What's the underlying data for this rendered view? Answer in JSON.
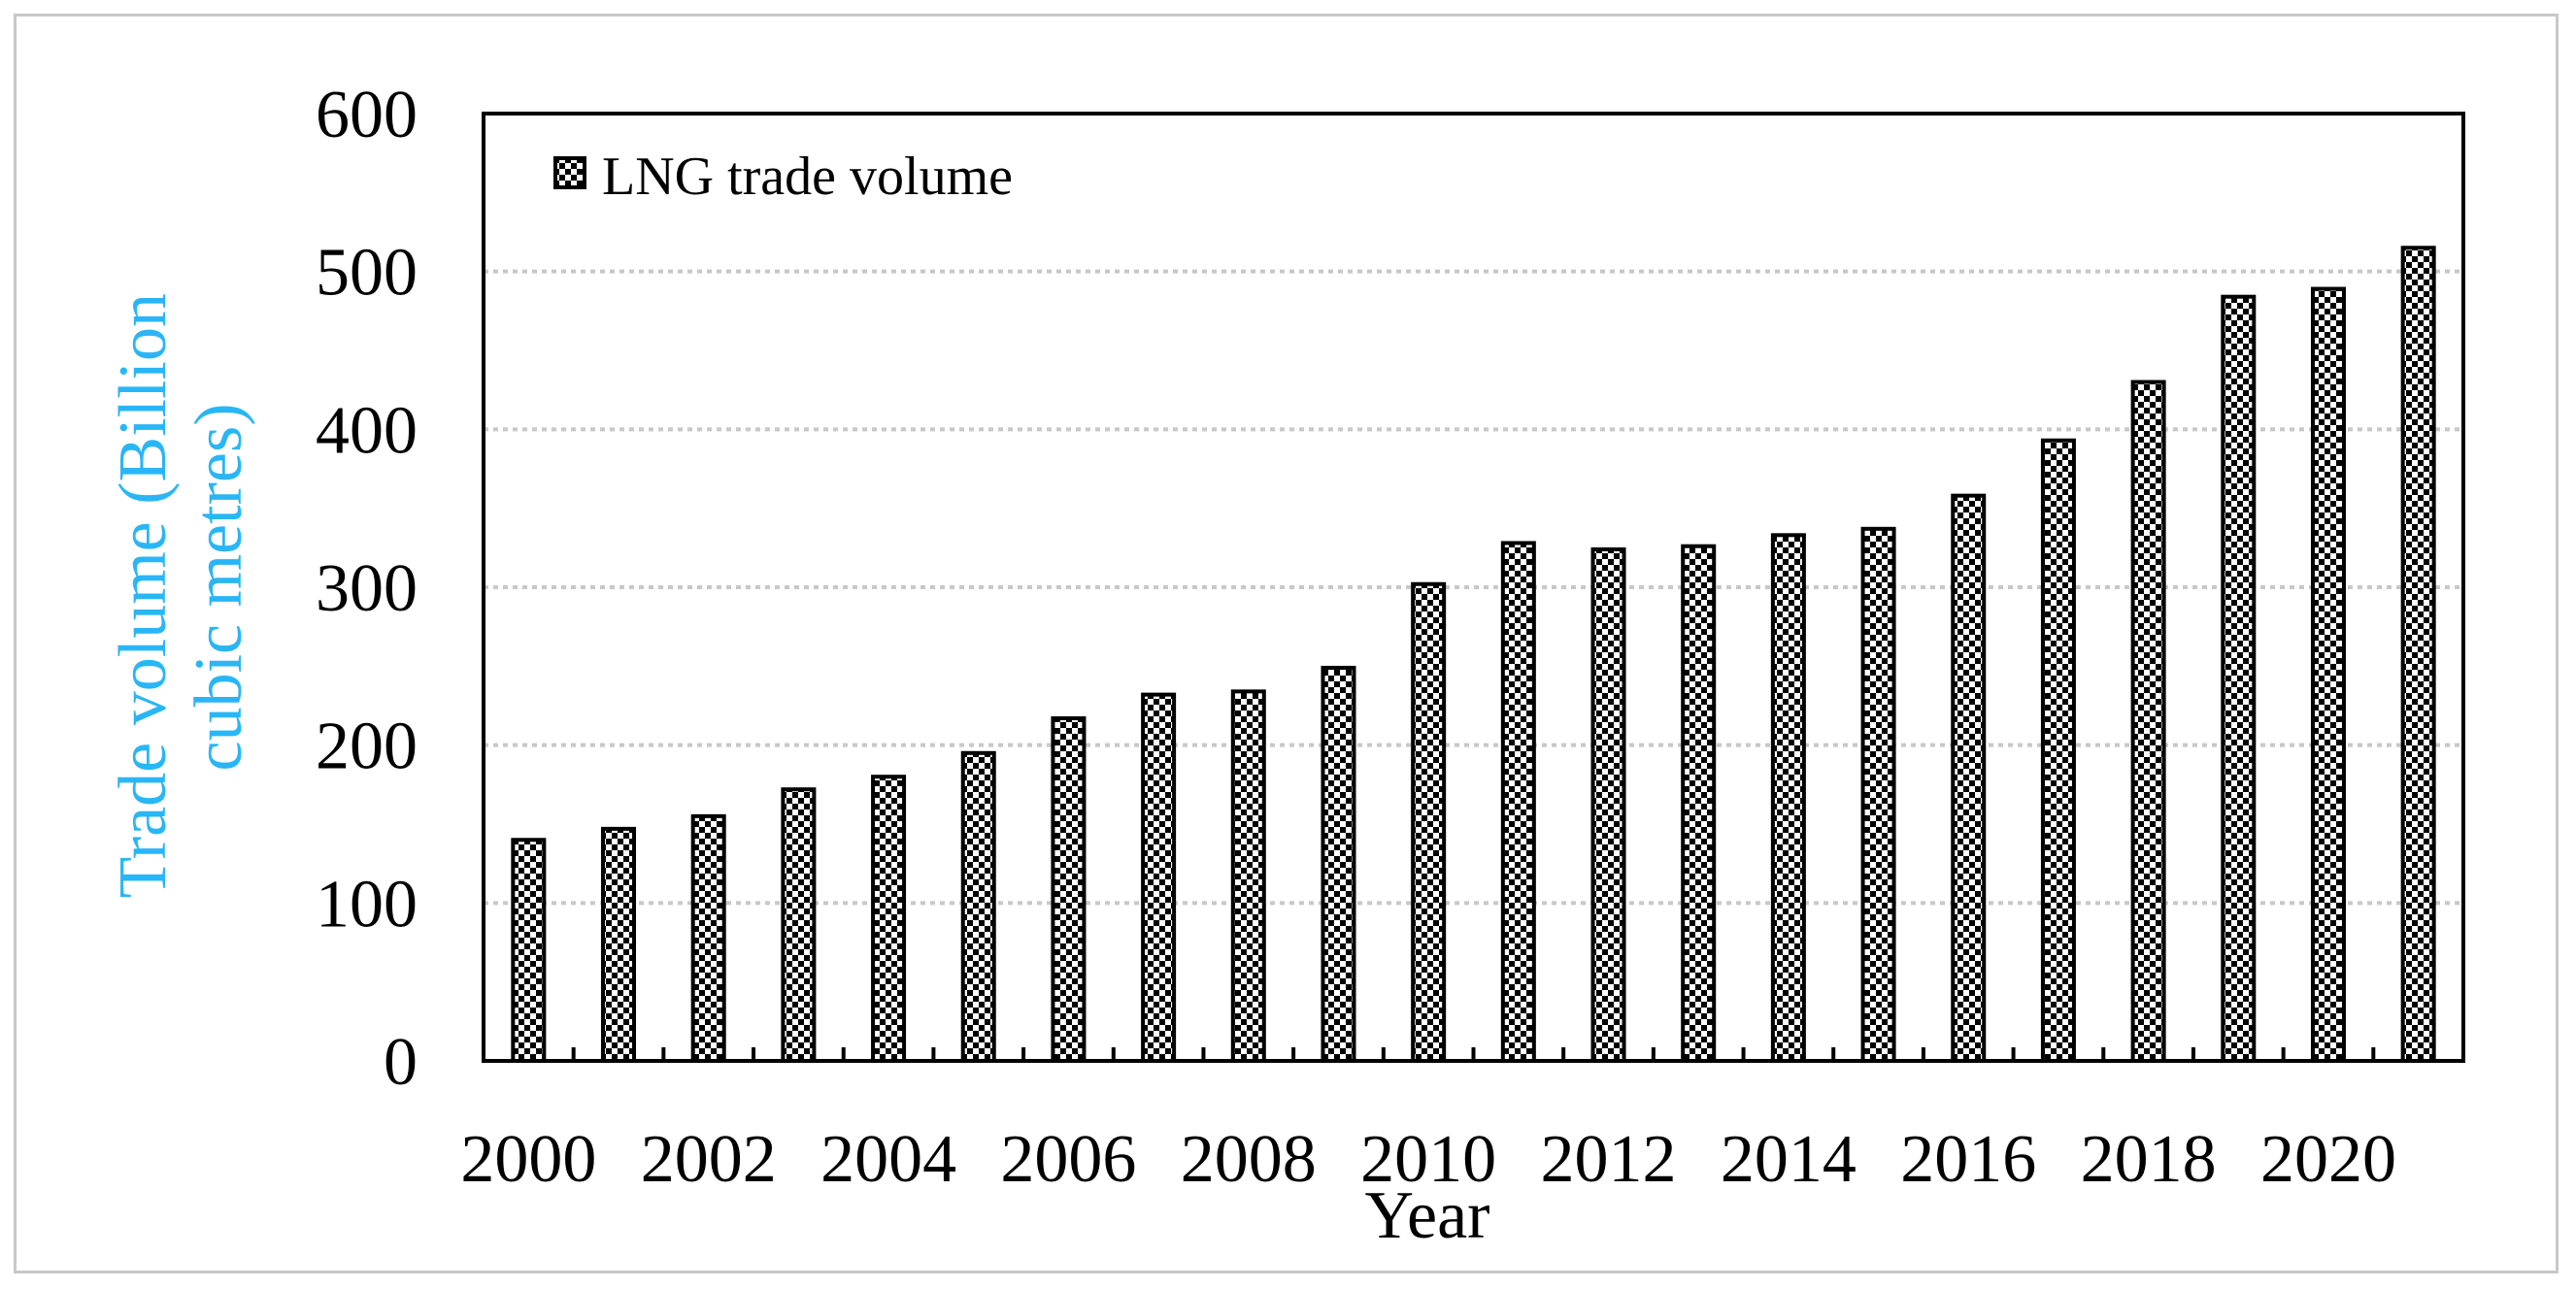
{
  "chart_data": {
    "type": "bar",
    "title": "",
    "xlabel": "Year",
    "ylabel": "Trade volume (Billion cubic metres)",
    "ylabel_lines": [
      "Trade volume (Billion",
      "cubic metres)"
    ],
    "ylim": [
      0,
      600
    ],
    "yticks": [
      0,
      100,
      200,
      300,
      400,
      500,
      600
    ],
    "grid": "horizontal dotted",
    "legend_position": "top-left",
    "categories": [
      "2000",
      "2001",
      "2002",
      "2003",
      "2004",
      "2005",
      "2006",
      "2007",
      "2008",
      "2009",
      "2010",
      "2011",
      "2012",
      "2013",
      "2014",
      "2015",
      "2016",
      "2017",
      "2018",
      "2019",
      "2020",
      "2021"
    ],
    "xtick_labels": [
      "2000",
      "2002",
      "2004",
      "2006",
      "2008",
      "2010",
      "2012",
      "2014",
      "2016",
      "2018",
      "2020"
    ],
    "series": [
      {
        "name": "LNG trade volume",
        "values": [
          140,
          147,
          155,
          172,
          180,
          195,
          217,
          232,
          234,
          249,
          302,
          328,
          324,
          326,
          333,
          337,
          358,
          393,
          430,
          484,
          489,
          515
        ]
      }
    ]
  },
  "colors": {
    "ylabel": "#29b6f6",
    "axis": "#000000",
    "grid": "#c8c8c8",
    "frame": "#c8c8c8"
  }
}
